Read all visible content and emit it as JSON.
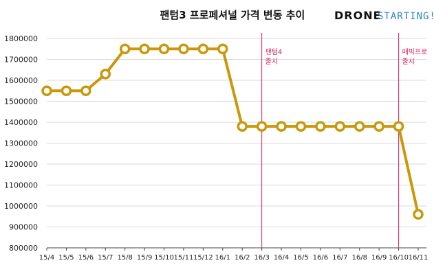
{
  "chart_data": {
    "type": "line",
    "title": "팬텀3 프로페셔널 가격 변동 추이",
    "xlabel": "",
    "ylabel": "",
    "ylim": [
      800000,
      1800000
    ],
    "yticks": [
      800000,
      900000,
      1000000,
      1100000,
      1200000,
      1300000,
      1400000,
      1500000,
      1600000,
      1700000,
      1800000
    ],
    "grid": true,
    "categories": [
      "15/4",
      "15/5",
      "15/6",
      "15/7",
      "15/8",
      "15/9",
      "15/10",
      "15/11",
      "15/12",
      "16/1",
      "16/2",
      "16/3",
      "16/4",
      "16/5",
      "16/6",
      "16/7",
      "16/8",
      "16/9",
      "16/10",
      "16/11"
    ],
    "series": [
      {
        "values": [
          1550000,
          1550000,
          1550000,
          1630000,
          1750000,
          1750000,
          1750000,
          1750000,
          1750000,
          1750000,
          1380000,
          1380000,
          1380000,
          1380000,
          1380000,
          1380000,
          1380000,
          1380000,
          1380000,
          960000
        ],
        "color": "#C9980B"
      }
    ],
    "annotations": [
      {
        "x": "16/3",
        "lines": [
          "팬텀4",
          "출시"
        ],
        "color": "#e0245e"
      },
      {
        "x": "16/10",
        "lines": [
          "매빅프로",
          "출시"
        ],
        "color": "#e0245e"
      }
    ]
  },
  "brand": {
    "main": "DRONE",
    "sub": "STARTING!",
    "sub_color": "#2f80d0"
  }
}
